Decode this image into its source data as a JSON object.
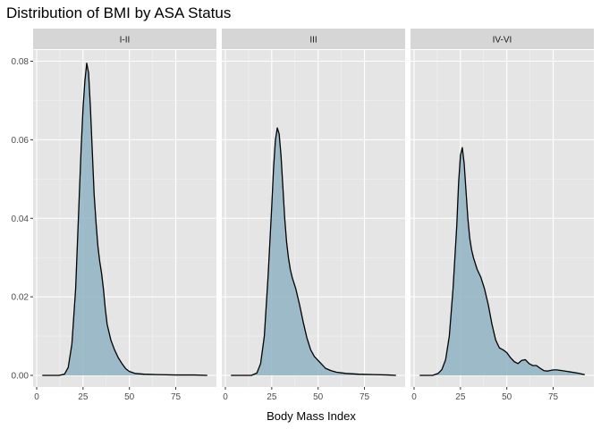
{
  "chart_data": {
    "type": "area",
    "title": "Distribution of BMI by ASA Status",
    "xlabel": "Body Mass Index",
    "ylabel": "",
    "xlim": [
      0,
      95
    ],
    "ylim": [
      0,
      0.08
    ],
    "x_ticks": [
      0,
      25,
      50,
      75
    ],
    "x_tick_labels": [
      "0",
      "25",
      "50",
      "75"
    ],
    "y_ticks": [
      0,
      0.02,
      0.04,
      0.06,
      0.08
    ],
    "y_tick_labels": [
      "0.00",
      "0.02",
      "0.04",
      "0.06",
      "0.08"
    ],
    "grid": true,
    "legend": "none",
    "colors": {
      "fill": "#8fb3c2",
      "line": "#000000",
      "panel_bg": "#e5e5e5",
      "grid_major": "#ffffff",
      "strip_bg": "#d6d6d6"
    },
    "facets": [
      {
        "label": "I-II",
        "points": [
          [
            3,
            0
          ],
          [
            12,
            0
          ],
          [
            15,
            0.0003
          ],
          [
            17,
            0.002
          ],
          [
            19,
            0.008
          ],
          [
            21,
            0.022
          ],
          [
            23,
            0.046
          ],
          [
            24,
            0.058
          ],
          [
            25,
            0.068
          ],
          [
            26,
            0.075
          ],
          [
            27,
            0.0795
          ],
          [
            28,
            0.077
          ],
          [
            29,
            0.068
          ],
          [
            30,
            0.057
          ],
          [
            31,
            0.046
          ],
          [
            32,
            0.039
          ],
          [
            33,
            0.033
          ],
          [
            34,
            0.029
          ],
          [
            35,
            0.026
          ],
          [
            36,
            0.022
          ],
          [
            37,
            0.017
          ],
          [
            38,
            0.013
          ],
          [
            40,
            0.009
          ],
          [
            42,
            0.0065
          ],
          [
            44,
            0.0045
          ],
          [
            46,
            0.003
          ],
          [
            48,
            0.0017
          ],
          [
            50,
            0.001
          ],
          [
            53,
            0.0005
          ],
          [
            58,
            0.0003
          ],
          [
            65,
            0.0002
          ],
          [
            75,
            0.0001
          ],
          [
            85,
            0.0001
          ],
          [
            92,
            0
          ]
        ]
      },
      {
        "label": "III",
        "points": [
          [
            3,
            0
          ],
          [
            14,
            0
          ],
          [
            17,
            0.0006
          ],
          [
            19,
            0.003
          ],
          [
            21,
            0.01
          ],
          [
            23,
            0.025
          ],
          [
            25,
            0.043
          ],
          [
            26,
            0.053
          ],
          [
            27,
            0.06
          ],
          [
            28,
            0.063
          ],
          [
            29,
            0.0615
          ],
          [
            30,
            0.056
          ],
          [
            31,
            0.048
          ],
          [
            32,
            0.04
          ],
          [
            33,
            0.034
          ],
          [
            34,
            0.03
          ],
          [
            35,
            0.027
          ],
          [
            36,
            0.025
          ],
          [
            37,
            0.0235
          ],
          [
            38,
            0.022
          ],
          [
            39,
            0.02
          ],
          [
            40,
            0.018
          ],
          [
            42,
            0.0135
          ],
          [
            44,
            0.0095
          ],
          [
            46,
            0.0065
          ],
          [
            48,
            0.0048
          ],
          [
            50,
            0.0038
          ],
          [
            52,
            0.0028
          ],
          [
            54,
            0.0018
          ],
          [
            57,
            0.0012
          ],
          [
            60,
            0.0008
          ],
          [
            65,
            0.0005
          ],
          [
            72,
            0.0003
          ],
          [
            80,
            0.0002
          ],
          [
            88,
            0.0001
          ],
          [
            92,
            0
          ]
        ]
      },
      {
        "label": "IV-VI",
        "points": [
          [
            3,
            0
          ],
          [
            10,
            0
          ],
          [
            13,
            0.0005
          ],
          [
            15,
            0.0015
          ],
          [
            17,
            0.004
          ],
          [
            19,
            0.01
          ],
          [
            21,
            0.022
          ],
          [
            23,
            0.038
          ],
          [
            24,
            0.049
          ],
          [
            25,
            0.056
          ],
          [
            26,
            0.058
          ],
          [
            27,
            0.054
          ],
          [
            28,
            0.047
          ],
          [
            29,
            0.04
          ],
          [
            30,
            0.035
          ],
          [
            31,
            0.032
          ],
          [
            32,
            0.03
          ],
          [
            34,
            0.027
          ],
          [
            36,
            0.025
          ],
          [
            38,
            0.022
          ],
          [
            40,
            0.018
          ],
          [
            42,
            0.013
          ],
          [
            44,
            0.009
          ],
          [
            46,
            0.007
          ],
          [
            48,
            0.0065
          ],
          [
            50,
            0.0058
          ],
          [
            52,
            0.0045
          ],
          [
            54,
            0.0035
          ],
          [
            56,
            0.003
          ],
          [
            58,
            0.0038
          ],
          [
            60,
            0.004
          ],
          [
            62,
            0.003
          ],
          [
            64,
            0.0025
          ],
          [
            66,
            0.0025
          ],
          [
            68,
            0.0018
          ],
          [
            70,
            0.0012
          ],
          [
            72,
            0.0011
          ],
          [
            75,
            0.0014
          ],
          [
            77,
            0.0014
          ],
          [
            80,
            0.0012
          ],
          [
            84,
            0.0009
          ],
          [
            88,
            0.0006
          ],
          [
            92,
            0.0002
          ]
        ]
      }
    ]
  }
}
